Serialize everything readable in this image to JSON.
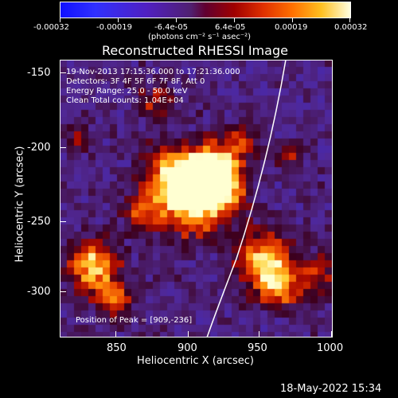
{
  "colorbar": {
    "ticks": [
      "-0.00032",
      "-0.00019",
      "-6.4e-05",
      "6.4e-05",
      "0.00019",
      "0.00032"
    ],
    "units": "(photons cm⁻² s⁻¹ asec⁻²)"
  },
  "plot": {
    "title": "Reconstructed RHESSI Image",
    "xlabel": "Heliocentric X (arcsec)",
    "ylabel": "Heliocentric Y (arcsec)",
    "xticks": [
      "850",
      "900",
      "950",
      "1000"
    ],
    "yticks": [
      "-150",
      "-200",
      "-250",
      "-300"
    ]
  },
  "info": {
    "time": "19-Nov-2013 17:15:36.000 to 17:21:36.000",
    "detectors": "Detectors: 3F 4F 5F 6F 7F 8F, Att 0",
    "energy": "Energy Range: 25.0 - 50.0 keV",
    "clean": "Clean     Total counts: 1.04E+04",
    "peak": "Position of Peak = [909,-236]"
  },
  "footer": {
    "timestamp": "18-May-2022 15:34"
  },
  "colors": {
    "background": "#000000",
    "axis": "#ffffff"
  }
}
